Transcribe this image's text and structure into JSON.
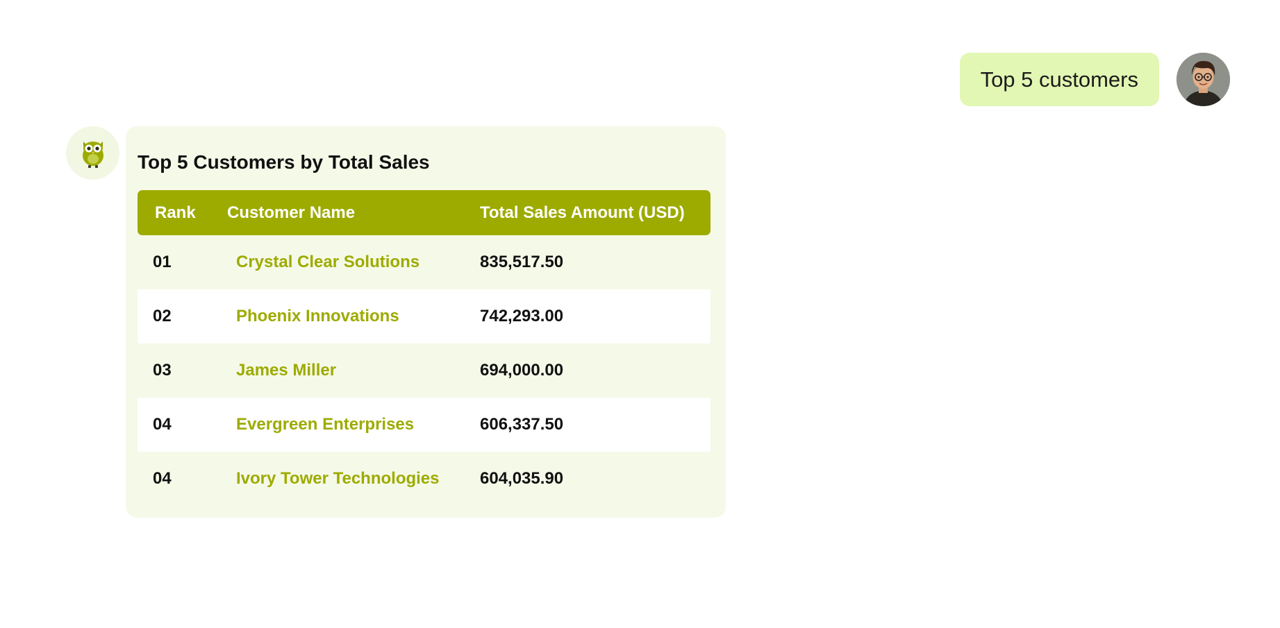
{
  "user_message": {
    "text": "Top 5 customers"
  },
  "bot_message": {
    "title": "Top 5 Customers by Total Sales",
    "table": {
      "headers": [
        "Rank",
        "Customer Name",
        "Total Sales Amount (USD)"
      ],
      "rows": [
        {
          "rank": "01",
          "customer": "Crystal Clear Solutions",
          "amount": "835,517.50"
        },
        {
          "rank": "02",
          "customer": "Phoenix Innovations",
          "amount": "742,293.00"
        },
        {
          "rank": "03",
          "customer": "James Miller",
          "amount": "694,000.00"
        },
        {
          "rank": "04",
          "customer": "Evergreen Enterprises",
          "amount": "606,337.50"
        },
        {
          "rank": "04",
          "customer": "Ivory Tower Technologies",
          "amount": "604,035.90"
        }
      ]
    }
  },
  "colors": {
    "accent": "#9dab00",
    "user_bubble": "#e2f7b3",
    "card_background": "#f5f9e8"
  },
  "icons": {
    "bot_avatar": "owl-icon",
    "user_avatar": "user-avatar-icon"
  }
}
